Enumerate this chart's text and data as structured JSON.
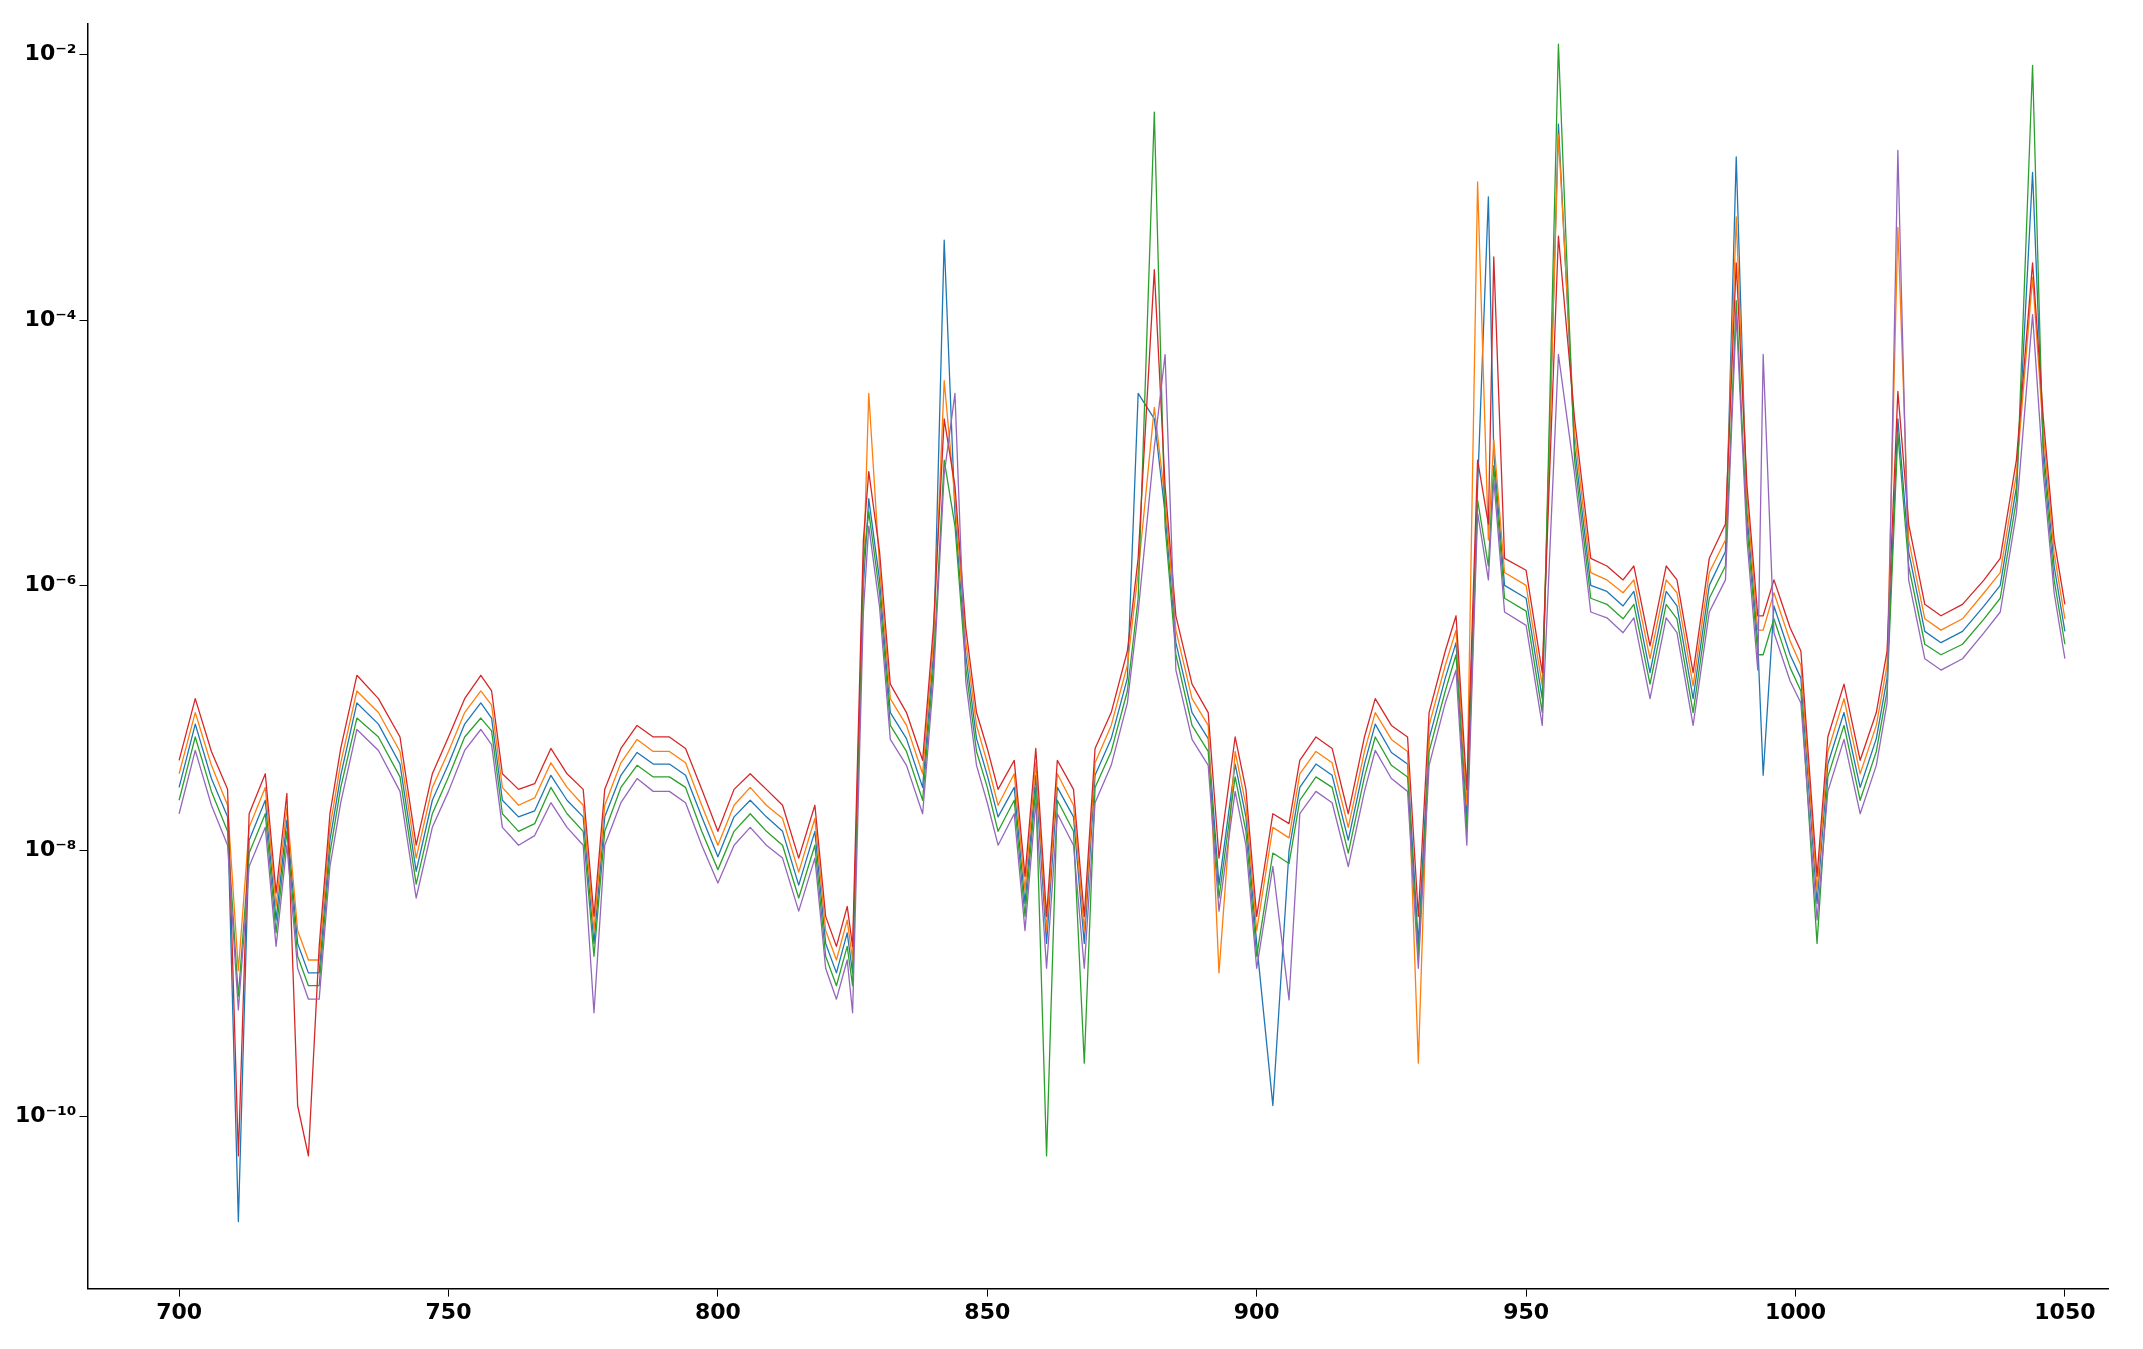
{
  "chart_data": {
    "type": "line",
    "log": "y",
    "grid": false,
    "legend": false,
    "marker": "none",
    "line_style": "solid",
    "xlim": [
      683,
      1058
    ],
    "xticks": [
      700,
      750,
      800,
      850,
      900,
      950,
      1000,
      1050
    ],
    "ylim": [
      5e-12,
      0.017
    ],
    "yticks": [
      {
        "value": 1e-10,
        "label": "10⁻¹⁰"
      },
      {
        "value": 1e-08,
        "label": "10⁻⁸"
      },
      {
        "value": 1e-06,
        "label": "10⁻⁶"
      },
      {
        "value": 0.0001,
        "label": "10⁻⁴"
      },
      {
        "value": 0.01,
        "label": "10⁻²"
      }
    ],
    "x": [
      700,
      703,
      706,
      709,
      711,
      713,
      716,
      718,
      720,
      722,
      724,
      726,
      728,
      730,
      733,
      737,
      741,
      744,
      747,
      750,
      753,
      756,
      758,
      760,
      763,
      766,
      769,
      772,
      775,
      777,
      779,
      782,
      785,
      788,
      791,
      794,
      797,
      800,
      803,
      806,
      809,
      812,
      815,
      818,
      820,
      822,
      824,
      825,
      827,
      828,
      830,
      832,
      835,
      838,
      840,
      842,
      844,
      846,
      848,
      850,
      852,
      855,
      857,
      859,
      861,
      863,
      866,
      868,
      870,
      873,
      876,
      878,
      881,
      883,
      885,
      888,
      891,
      893,
      896,
      898,
      900,
      903,
      906,
      908,
      911,
      914,
      917,
      920,
      922,
      925,
      928,
      930,
      932,
      935,
      937,
      939,
      941,
      943,
      944,
      946,
      950,
      953,
      956,
      959,
      962,
      965,
      968,
      970,
      973,
      976,
      978,
      981,
      984,
      987,
      989,
      991,
      993,
      994,
      996,
      999,
      1001,
      1004,
      1006,
      1009,
      1012,
      1015,
      1017,
      1019,
      1021,
      1024,
      1027,
      1031,
      1035,
      1038,
      1041,
      1044,
      1046,
      1048,
      1050
    ],
    "series": [
      {
        "color": "#1f77b4",
        "values": [
          3e-08,
          9e-08,
          3.5e-08,
          1.8e-08,
          1.6e-11,
          1.2e-08,
          2.4e-08,
          3e-09,
          1.7e-08,
          2e-09,
          1.2e-09,
          1.2e-09,
          1.2e-08,
          3.7e-08,
          1.3e-07,
          9e-08,
          4.5e-08,
          7e-09,
          2.4e-08,
          4.5e-08,
          9e-08,
          1.3e-07,
          1e-07,
          2.4e-08,
          1.8e-08,
          2e-08,
          3.7e-08,
          2.4e-08,
          1.8e-08,
          2e-09,
          1.8e-08,
          3.7e-08,
          5.5e-08,
          4.5e-08,
          4.5e-08,
          3.7e-08,
          1.8e-08,
          9e-09,
          1.8e-08,
          2.4e-08,
          1.8e-08,
          1.4e-08,
          5.5e-09,
          1.4e-08,
          2e-09,
          1.2e-09,
          2.4e-09,
          1.2e-09,
          1e-06,
          4.5e-06,
          1.1e-06,
          1.1e-07,
          7e-08,
          3e-08,
          3e-07,
          0.0004,
          3.5e-06,
          3e-07,
          7e-08,
          3.7e-08,
          1.8e-08,
          3e-08,
          4e-09,
          3.7e-08,
          2e-09,
          3e-08,
          1.8e-08,
          2e-09,
          3.7e-08,
          7e-08,
          2e-07,
          2.8e-05,
          1.8e-05,
          3.5e-06,
          3.7e-07,
          1.1e-07,
          7e-08,
          5.5e-09,
          4.5e-08,
          1.8e-08,
          2e-09,
          1.2e-10,
          1e-08,
          3e-08,
          4.5e-08,
          3.7e-08,
          1.2e-08,
          4.5e-08,
          9e-08,
          5.5e-08,
          4.5e-08,
          2e-09,
          7e-08,
          2e-07,
          3.7e-07,
          1.8e-08,
          5.5e-06,
          0.00085,
          1e-05,
          1e-06,
          8e-07,
          1.4e-07,
          0.003,
          1.1e-05,
          1e-06,
          9e-07,
          7e-07,
          9e-07,
          2.2e-07,
          9e-07,
          7e-07,
          1.4e-07,
          1e-06,
          1.8e-06,
          0.0017,
          3.5e-06,
          3.7e-07,
          3.7e-08,
          7e-07,
          3e-07,
          2e-07,
          4e-09,
          4.5e-08,
          1.1e-07,
          3e-08,
          7e-08,
          2e-07,
          1.8e-05,
          1.8e-06,
          4.5e-07,
          3.7e-07,
          4.5e-07,
          7e-07,
          1e-06,
          5.5e-06,
          0.0013,
          1.1e-05,
          1.4e-06,
          4.5e-07
        ]
      },
      {
        "color": "#ff7f0e",
        "values": [
          3.8e-08,
          1.1e-07,
          4.4e-08,
          2.2e-08,
          1.25e-09,
          1.5e-08,
          3e-08,
          3.8e-09,
          2.1e-08,
          2.5e-09,
          1.5e-09,
          1.5e-09,
          1.5e-08,
          4.6e-08,
          1.6e-07,
          1.1e-07,
          5.6e-08,
          8.8e-09,
          3e-08,
          5.6e-08,
          1.1e-07,
          1.6e-07,
          1.25e-07,
          3e-08,
          2.2e-08,
          2.5e-08,
          4.6e-08,
          3e-08,
          2.2e-08,
          2.5e-09,
          2.2e-08,
          4.6e-08,
          6.9e-08,
          5.6e-08,
          5.6e-08,
          4.6e-08,
          2.2e-08,
          1.1e-08,
          2.2e-08,
          3e-08,
          2.2e-08,
          1.75e-08,
          6.9e-09,
          1.75e-08,
          2.5e-09,
          1.5e-09,
          3e-09,
          1.5e-09,
          1.25e-06,
          2.8e-05,
          1.4e-06,
          1.4e-07,
          8.8e-08,
          3.8e-08,
          3.8e-07,
          3.5e-05,
          4.4e-06,
          3.8e-07,
          8.8e-08,
          4.6e-08,
          2.2e-08,
          3.8e-08,
          5e-09,
          4.6e-08,
          2.5e-09,
          3.8e-08,
          2.2e-08,
          2.5e-09,
          4.6e-08,
          8.8e-08,
          2.5e-07,
          1.25e-06,
          2.2e-05,
          4.4e-06,
          4.6e-07,
          1.4e-07,
          8.8e-08,
          1.2e-09,
          5.6e-08,
          2.2e-08,
          2.5e-09,
          1.5e-08,
          1.25e-08,
          3.8e-08,
          5.6e-08,
          4.6e-08,
          1.5e-08,
          5.6e-08,
          1.1e-07,
          6.9e-08,
          5.6e-08,
          2.5e-10,
          8.8e-08,
          2.5e-07,
          4.6e-07,
          2.2e-08,
          0.0011,
          2.2e-06,
          1.25e-05,
          1.25e-06,
          1e-06,
          1.75e-07,
          0.0025,
          1.4e-05,
          1.25e-06,
          1.1e-06,
          8.8e-07,
          1.1e-06,
          2.8e-07,
          1.1e-06,
          8.8e-07,
          1.75e-07,
          1.25e-06,
          2.2e-06,
          0.0006,
          4.4e-06,
          4.6e-07,
          4.6e-07,
          8.8e-07,
          3.8e-07,
          2.5e-07,
          5e-09,
          5.6e-08,
          1.4e-07,
          3.8e-08,
          8.8e-08,
          2.5e-07,
          0.0005,
          2.2e-06,
          5.6e-07,
          4.6e-07,
          5.6e-07,
          8.8e-07,
          1.25e-06,
          6.9e-06,
          0.00021,
          1.4e-05,
          1.75e-06,
          5.6e-07
        ]
      },
      {
        "color": "#2ca02c",
        "values": [
          2.4e-08,
          7.2e-08,
          2.8e-08,
          1.4e-08,
          8e-10,
          9.6e-09,
          1.9e-08,
          2.4e-09,
          1.4e-08,
          1.6e-09,
          9.6e-10,
          9.6e-10,
          9.6e-09,
          3e-08,
          1e-07,
          7.2e-08,
          3.6e-08,
          5.6e-09,
          1.9e-08,
          3.6e-08,
          7.2e-08,
          1e-07,
          8e-08,
          1.9e-08,
          1.4e-08,
          1.6e-08,
          3e-08,
          1.9e-08,
          1.4e-08,
          1.6e-09,
          1.4e-08,
          3e-08,
          4.4e-08,
          3.6e-08,
          3.6e-08,
          3e-08,
          1.4e-08,
          7.2e-09,
          1.4e-08,
          1.9e-08,
          1.4e-08,
          1.1e-08,
          4.4e-09,
          1.1e-08,
          1.6e-09,
          9.6e-10,
          1.9e-09,
          9.6e-10,
          1.5e-06,
          3.6e-06,
          8.8e-07,
          8.8e-08,
          5.6e-08,
          2.4e-08,
          2.4e-07,
          8.8e-06,
          2.8e-06,
          2.4e-07,
          5.6e-08,
          3e-08,
          1.4e-08,
          2.4e-08,
          3.2e-09,
          3e-08,
          5e-11,
          2.4e-08,
          1.4e-08,
          2.5e-10,
          3e-08,
          5.6e-08,
          1.6e-07,
          8e-07,
          0.0037,
          2.8e-06,
          3e-07,
          8.8e-08,
          5.6e-08,
          4.4e-09,
          3.6e-08,
          1.4e-08,
          1.6e-09,
          9.6e-09,
          8e-09,
          2.4e-08,
          3.6e-08,
          3e-08,
          9.6e-09,
          3.6e-08,
          7.2e-08,
          4.4e-08,
          3.6e-08,
          1.6e-09,
          5.6e-08,
          1.6e-07,
          3e-07,
          1.4e-08,
          4.4e-06,
          1.4e-06,
          8e-06,
          8e-07,
          6.4e-07,
          1.1e-07,
          0.012,
          8.8e-06,
          8e-07,
          7.2e-07,
          5.6e-07,
          7.2e-07,
          1.8e-07,
          7.2e-07,
          5.6e-07,
          1.1e-07,
          8e-07,
          1.4e-06,
          0.00014,
          2.8e-06,
          3e-07,
          3e-07,
          5.6e-07,
          2.4e-07,
          1.6e-07,
          2e-09,
          3.6e-08,
          8.8e-08,
          2.4e-08,
          5.6e-08,
          1.6e-07,
          1.4e-05,
          1.4e-06,
          3.6e-07,
          3e-07,
          3.6e-07,
          5.6e-07,
          8e-07,
          4.4e-06,
          0.0083,
          8.8e-06,
          1.1e-06,
          3.6e-07
        ]
      },
      {
        "color": "#d62728",
        "values": [
          4.8e-08,
          1.4e-07,
          5.6e-08,
          2.9e-08,
          5e-11,
          1.9e-08,
          3.8e-08,
          4.8e-09,
          2.7e-08,
          1.2e-10,
          5e-11,
          1.9e-09,
          1.9e-08,
          5.9e-08,
          2.1e-07,
          1.4e-07,
          7.2e-08,
          1.1e-08,
          3.8e-08,
          7.2e-08,
          1.4e-07,
          2.1e-07,
          1.6e-07,
          3.8e-08,
          2.9e-08,
          3.2e-08,
          5.9e-08,
          3.8e-08,
          2.9e-08,
          3.2e-09,
          2.9e-08,
          5.9e-08,
          8.8e-08,
          7.2e-08,
          7.2e-08,
          5.9e-08,
          2.9e-08,
          1.4e-08,
          2.9e-08,
          3.8e-08,
          2.9e-08,
          2.2e-08,
          8.8e-09,
          2.2e-08,
          3.2e-09,
          1.9e-09,
          3.8e-09,
          1.9e-09,
          2.2e-06,
          7.2e-06,
          1.8e-06,
          1.8e-07,
          1.1e-07,
          4.8e-08,
          4.8e-07,
          1.8e-05,
          5.6e-06,
          4.8e-07,
          1.1e-07,
          5.9e-08,
          2.9e-08,
          4.8e-08,
          6.4e-09,
          5.9e-08,
          3.2e-09,
          4.8e-08,
          2.9e-08,
          3.2e-09,
          5.9e-08,
          1.1e-07,
          3.2e-07,
          1.6e-06,
          0.00024,
          5.6e-06,
          5.9e-07,
          1.8e-07,
          1.1e-07,
          8.8e-09,
          7.2e-08,
          2.9e-08,
          3.2e-09,
          1.9e-08,
          1.6e-08,
          4.8e-08,
          7.2e-08,
          5.9e-08,
          1.9e-08,
          7.2e-08,
          1.4e-07,
          8.8e-08,
          7.2e-08,
          3.2e-09,
          1.1e-07,
          3.2e-07,
          5.9e-07,
          2.9e-08,
          8.8e-06,
          2.9e-06,
          0.0003,
          1.6e-06,
          1.3e-06,
          2.2e-07,
          0.00043,
          1.8e-05,
          1.6e-06,
          1.4e-06,
          1.1e-06,
          1.4e-06,
          3.5e-07,
          1.4e-06,
          1.1e-06,
          2.2e-07,
          1.6e-06,
          2.9e-06,
          0.00027,
          5.6e-06,
          5.9e-07,
          5.9e-07,
          1.1e-06,
          4.8e-07,
          3.2e-07,
          6.4e-09,
          7.2e-08,
          1.8e-07,
          4.8e-08,
          1.1e-07,
          3.2e-07,
          2.9e-05,
          2.9e-06,
          7.2e-07,
          5.9e-07,
          7.2e-07,
          1.1e-06,
          1.6e-06,
          8.8e-06,
          0.00027,
          1.8e-05,
          2.2e-06,
          7.2e-07
        ]
      },
      {
        "color": "#9467bd",
        "values": [
          1.9e-08,
          5.7e-08,
          2.2e-08,
          1.1e-08,
          6.3e-10,
          7.6e-09,
          1.5e-08,
          1.9e-09,
          1.1e-08,
          1.3e-09,
          7.6e-10,
          7.6e-10,
          7.6e-09,
          2.3e-08,
          8.2e-08,
          5.7e-08,
          2.8e-08,
          4.4e-09,
          1.5e-08,
          2.8e-08,
          5.7e-08,
          8.2e-08,
          6.3e-08,
          1.5e-08,
          1.1e-08,
          1.3e-08,
          2.3e-08,
          1.5e-08,
          1.1e-08,
          6e-10,
          1.1e-08,
          2.3e-08,
          3.5e-08,
          2.8e-08,
          2.8e-08,
          2.3e-08,
          1.1e-08,
          5.7e-09,
          1.1e-08,
          1.5e-08,
          1.1e-08,
          8.8e-09,
          3.5e-09,
          8.8e-09,
          1.3e-09,
          7.6e-10,
          1.5e-09,
          6e-10,
          6.3e-07,
          2.8e-06,
          6.9e-07,
          6.9e-08,
          4.4e-08,
          1.9e-08,
          1.9e-07,
          6.9e-06,
          2.8e-05,
          1.9e-07,
          4.4e-08,
          2.3e-08,
          1.1e-08,
          1.9e-08,
          2.5e-09,
          2.3e-08,
          1.3e-09,
          1.9e-08,
          1.1e-08,
          1.3e-09,
          2.3e-08,
          4.4e-08,
          1.3e-07,
          6.3e-07,
          1.1e-05,
          5.5e-05,
          2.3e-07,
          6.9e-08,
          4.4e-08,
          3.5e-09,
          2.8e-08,
          1.1e-08,
          1.3e-09,
          7.6e-09,
          7.5e-10,
          1.9e-08,
          2.8e-08,
          2.3e-08,
          7.6e-09,
          2.8e-08,
          5.7e-08,
          3.5e-08,
          2.8e-08,
          1.3e-09,
          4.4e-08,
          1.3e-07,
          2.3e-07,
          1.1e-08,
          3.5e-06,
          1.1e-06,
          6.3e-06,
          6.3e-07,
          5e-07,
          8.8e-08,
          5.5e-05,
          6.9e-06,
          6.3e-07,
          5.7e-07,
          4.4e-07,
          5.7e-07,
          1.4e-07,
          5.7e-07,
          4.4e-07,
          8.8e-08,
          6.3e-07,
          1.1e-06,
          0.00011,
          2.2e-06,
          2.3e-07,
          5.5e-05,
          4.4e-07,
          1.9e-07,
          1.3e-07,
          3e-09,
          2.8e-08,
          6.9e-08,
          1.9e-08,
          4.4e-08,
          1.3e-07,
          0.0019,
          1.1e-06,
          2.8e-07,
          2.3e-07,
          2.8e-07,
          4.4e-07,
          6.3e-07,
          3.5e-06,
          0.00011,
          6.9e-06,
          8.8e-07,
          2.8e-07
        ]
      }
    ]
  }
}
